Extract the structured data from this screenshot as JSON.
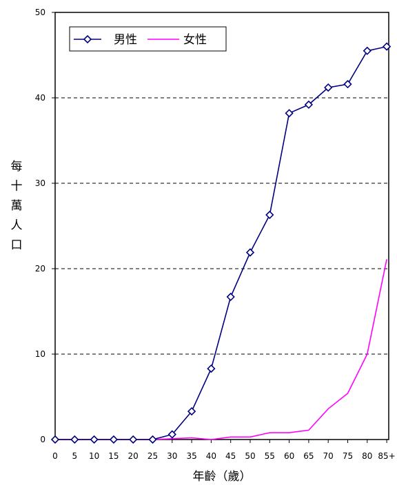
{
  "chart_data": {
    "type": "line",
    "title": "",
    "xlabel": "年齡（歲）",
    "ylabel": "每十萬人口",
    "ylim": [
      0,
      50
    ],
    "yticks": [
      "0",
      "10",
      "20",
      "30",
      "40",
      "50"
    ],
    "categories": [
      "0",
      "5",
      "10",
      "15",
      "20",
      "25",
      "30",
      "35",
      "40",
      "45",
      "50",
      "55",
      "60",
      "65",
      "70",
      "75",
      "80",
      "85+"
    ],
    "grid": "horizontal-dashed",
    "legend_position": "top-left",
    "series": [
      {
        "name": "男性",
        "color": "#000080",
        "marker": "diamond",
        "values": [
          0,
          0,
          0,
          0,
          0,
          0,
          0.6,
          3.3,
          8.3,
          16.7,
          21.9,
          26.3,
          38.2,
          39.2,
          41.2,
          41.6,
          45.5,
          46.0
        ]
      },
      {
        "name": "女性",
        "color": "#ff00ff",
        "marker": "none",
        "values": [
          0,
          0,
          0,
          0,
          0,
          0,
          0.1,
          0.2,
          0.0,
          0.3,
          0.3,
          0.8,
          0.8,
          1.1,
          3.6,
          5.4,
          10.0,
          21.1
        ]
      }
    ]
  }
}
